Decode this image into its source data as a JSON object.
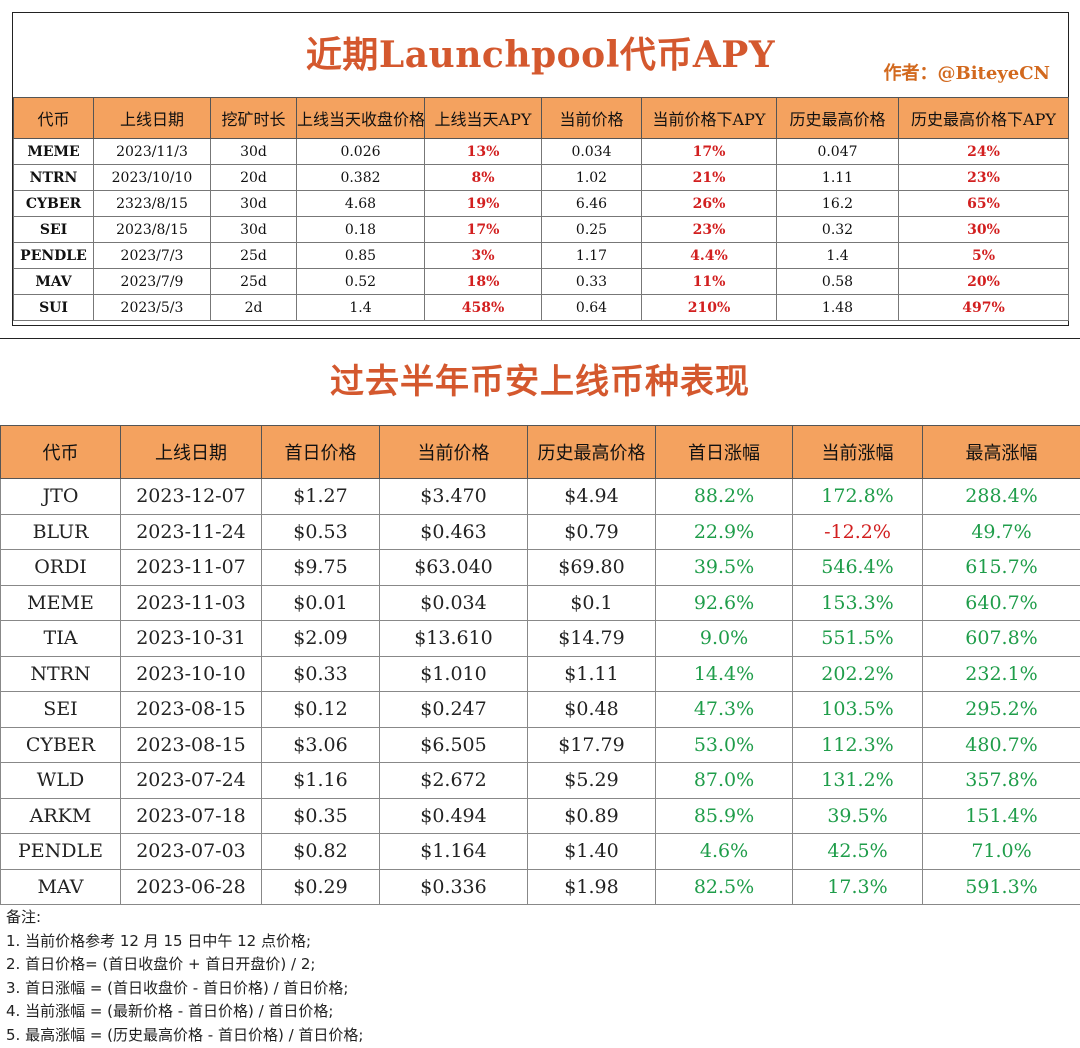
{
  "top": {
    "title": "近期Launchpool代币APY",
    "author": "作者：@BiteyeCN",
    "headers": [
      "代币",
      "上线日期",
      "挖矿时长",
      "上线当天收盘价格",
      "上线当天APY",
      "当前价格",
      "当前价格下APY",
      "历史最高价格",
      "历史最高价格下APY"
    ],
    "rows": [
      [
        "MEME",
        "2023/11/3",
        "30d",
        "0.026",
        "13%",
        "0.034",
        "17%",
        "0.047",
        "24%"
      ],
      [
        "NTRN",
        "2023/10/10",
        "20d",
        "0.382",
        "8%",
        "1.02",
        "21%",
        "1.11",
        "23%"
      ],
      [
        "CYBER",
        "2323/8/15",
        "30d",
        "4.68",
        "19%",
        "6.46",
        "26%",
        "16.2",
        "65%"
      ],
      [
        "SEI",
        "2023/8/15",
        "30d",
        "0.18",
        "17%",
        "0.25",
        "23%",
        "0.32",
        "30%"
      ],
      [
        "PENDLE",
        "2023/7/3",
        "25d",
        "0.85",
        "3%",
        "1.17",
        "4.4%",
        "1.4",
        "5%"
      ],
      [
        "MAV",
        "2023/7/9",
        "25d",
        "0.52",
        "18%",
        "0.33",
        "11%",
        "0.58",
        "20%"
      ],
      [
        "SUI",
        "2023/5/3",
        "2d",
        "1.4",
        "458%",
        "0.64",
        "210%",
        "1.48",
        "497%"
      ]
    ]
  },
  "bottom": {
    "title": "过去半年币安上线币种表现",
    "headers": [
      "代币",
      "上线日期",
      "首日价格",
      "当前价格",
      "历史最高价格",
      "首日涨幅",
      "当前涨幅",
      "最高涨幅"
    ],
    "rows": [
      [
        "JTO",
        "2023-12-07",
        "$1.27",
        "$3.470",
        "$4.94",
        "88.2%",
        "172.8%",
        "288.4%"
      ],
      [
        "BLUR",
        "2023-11-24",
        "$0.53",
        "$0.463",
        "$0.79",
        "22.9%",
        "-12.2%",
        "49.7%"
      ],
      [
        "ORDI",
        "2023-11-07",
        "$9.75",
        "$63.040",
        "$69.80",
        "39.5%",
        "546.4%",
        "615.7%"
      ],
      [
        "MEME",
        "2023-11-03",
        "$0.01",
        "$0.034",
        "$0.1",
        "92.6%",
        "153.3%",
        "640.7%"
      ],
      [
        "TIA",
        "2023-10-31",
        "$2.09",
        "$13.610",
        "$14.79",
        "9.0%",
        "551.5%",
        "607.8%"
      ],
      [
        "NTRN",
        "2023-10-10",
        "$0.33",
        "$1.010",
        "$1.11",
        "14.4%",
        "202.2%",
        "232.1%"
      ],
      [
        "SEI",
        "2023-08-15",
        "$0.12",
        "$0.247",
        "$0.48",
        "47.3%",
        "103.5%",
        "295.2%"
      ],
      [
        "CYBER",
        "2023-08-15",
        "$3.06",
        "$6.505",
        "$17.79",
        "53.0%",
        "112.3%",
        "480.7%"
      ],
      [
        "WLD",
        "2023-07-24",
        "$1.16",
        "$2.672",
        "$5.29",
        "87.0%",
        "131.2%",
        "357.8%"
      ],
      [
        "ARKM",
        "2023-07-18",
        "$0.35",
        "$0.494",
        "$0.89",
        "85.9%",
        "39.5%",
        "151.4%"
      ],
      [
        "PENDLE",
        "2023-07-03",
        "$0.82",
        "$1.164",
        "$1.40",
        "4.6%",
        "42.5%",
        "71.0%"
      ],
      [
        "MAV",
        "2023-06-28",
        "$0.29",
        "$0.336",
        "$1.98",
        "82.5%",
        "17.3%",
        "591.3%"
      ]
    ]
  },
  "notes": [
    "备注:",
    "1. 当前价格参考 12 月 15 日中午 12 点价格;",
    "2. 首日价格= (首日收盘价 + 首日开盘价) / 2;",
    "3. 首日涨幅 = (首日收盘价 - 首日价格) / 首日价格;",
    "4. 当前涨幅 = (最新价格 - 首日价格) / 首日价格;",
    "5. 最高涨幅 = (历史最高价格 - 首日价格) / 首日价格;"
  ],
  "colors": {
    "header_bg": "#f4a25f",
    "title": "#d4582e",
    "positive": "#1f9d4a",
    "negative": "#d21f1f"
  }
}
